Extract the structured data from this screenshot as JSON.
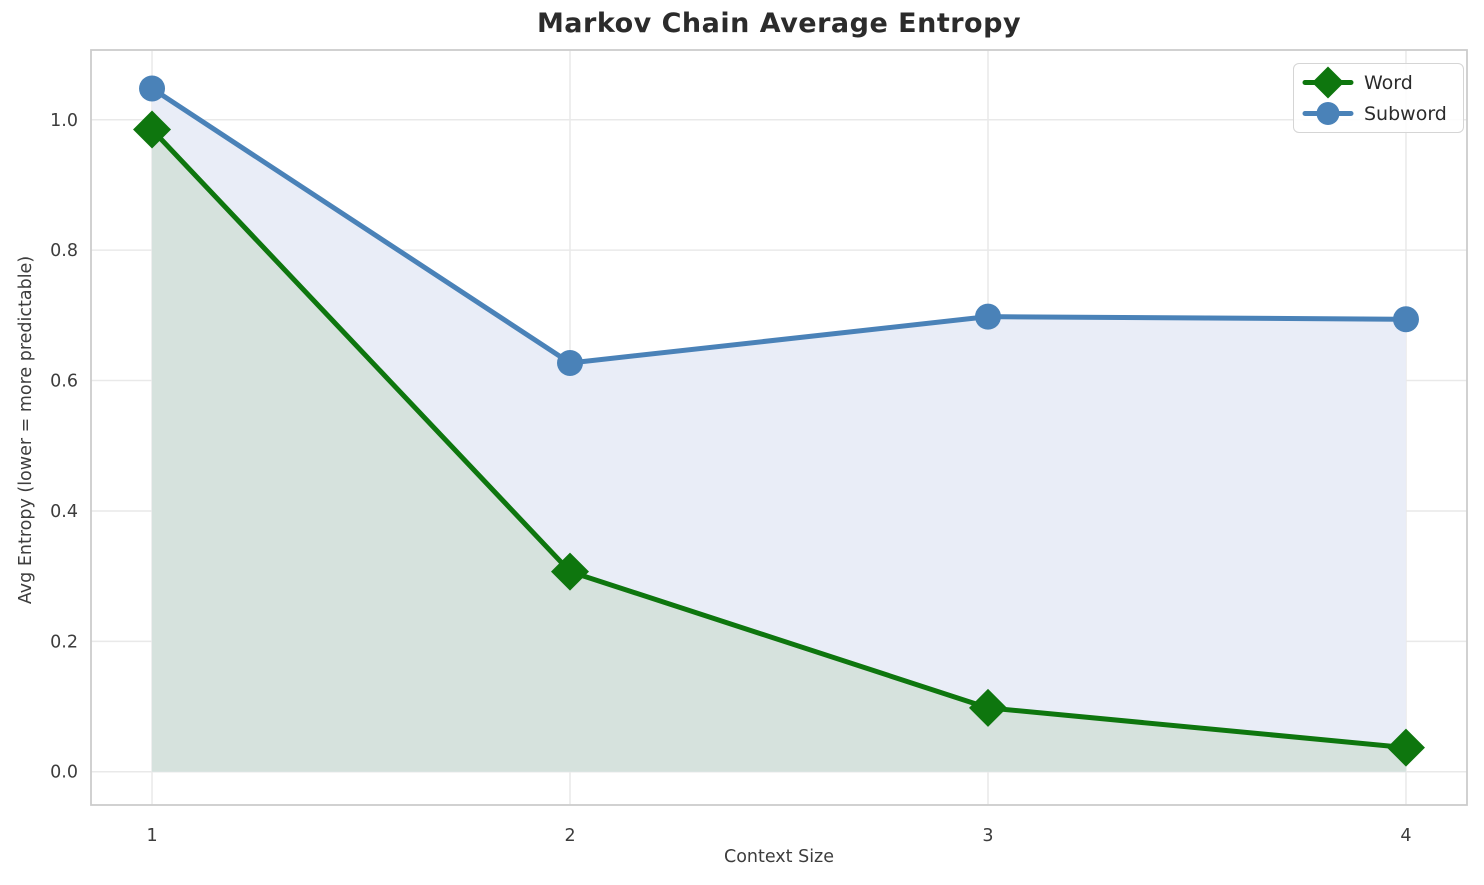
{
  "chart_data": {
    "type": "line",
    "title": "Markov Chain Average Entropy",
    "xlabel": "Context Size",
    "ylabel": "Avg Entropy (lower = more predictable)",
    "x": [
      1,
      2,
      3,
      4
    ],
    "xtick_labels": [
      "1",
      "2",
      "3",
      "4"
    ],
    "yticks": [
      0.0,
      0.2,
      0.4,
      0.6,
      0.8,
      1.0
    ],
    "xlim": [
      0.854,
      4.146
    ],
    "ylim": [
      -0.051,
      1.107
    ],
    "grid": true,
    "legend_position": "upper-right",
    "series": [
      {
        "name": "Word",
        "marker": "diamond",
        "color": "#0e760e",
        "area_fill_color": "#d6e2dd",
        "fill_to_zero": true,
        "values": [
          0.985,
          0.307,
          0.098,
          0.037
        ]
      },
      {
        "name": "Subword",
        "marker": "circle",
        "color": "#4a82b8",
        "area_fill_color": "#e9edf7",
        "fill_to_zero": true,
        "values": [
          1.048,
          0.627,
          0.698,
          0.694
        ]
      }
    ],
    "styles": {
      "grid_color": "#e9e9e9",
      "spine_color": "#cccccc",
      "tick_label_color": "#3d3d3d",
      "title_color": "#2b2b2b",
      "line_width": 5
    }
  }
}
